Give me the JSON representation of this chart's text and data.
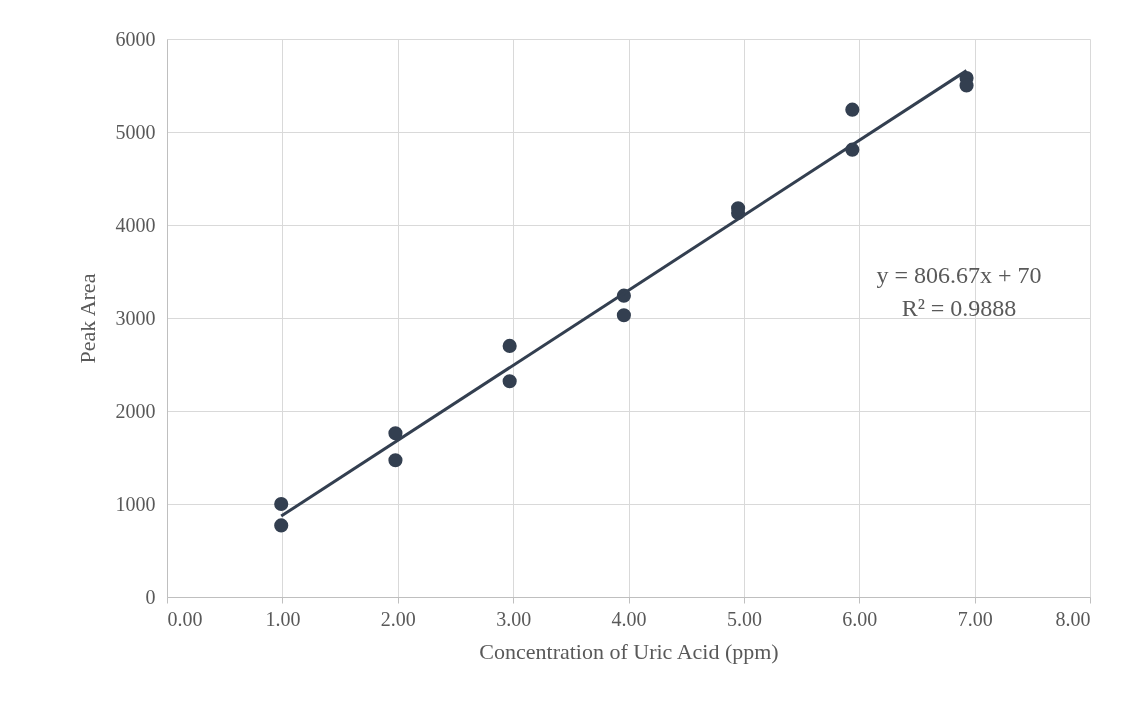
{
  "chart_data": {
    "type": "scatter",
    "xlabel": "Concentration of Uric Acid (ppm)",
    "ylabel": "Peak Area",
    "xlim": [
      0,
      8
    ],
    "xticks": [
      {
        "value": 0,
        "label": "0.00"
      },
      {
        "value": 1,
        "label": "1.00"
      },
      {
        "value": 2,
        "label": "2.00"
      },
      {
        "value": 3,
        "label": "3.00"
      },
      {
        "value": 4,
        "label": "4.00"
      },
      {
        "value": 5,
        "label": "5.00"
      },
      {
        "value": 6,
        "label": "6.00"
      },
      {
        "value": 7,
        "label": "7.00"
      },
      {
        "value": 8,
        "label": "8.00"
      }
    ],
    "ylim": [
      0,
      6000
    ],
    "yticks": [
      0,
      1000,
      2000,
      3000,
      4000,
      5000,
      6000
    ],
    "grid": true,
    "annotations": [
      "y = 806.67x + 70",
      "R² = 0.9888"
    ],
    "series": [
      {
        "color": "#333f50",
        "marker": "circle",
        "x": [
          0.99,
          0.99,
          1.98,
          1.98,
          2.97,
          2.97,
          3.96,
          3.96,
          4.95,
          4.95,
          5.94,
          5.94,
          6.93,
          6.93
        ],
        "values": [
          1000,
          770,
          1760,
          1470,
          2700,
          2320,
          3240,
          3030,
          4180,
          4130,
          5240,
          4810,
          5580,
          5500
        ]
      },
      {
        "color": "#333f50",
        "type": "line",
        "line_style": "solid",
        "x": [
          0.99,
          6.93
        ],
        "values": [
          870,
          5660
        ]
      }
    ]
  }
}
